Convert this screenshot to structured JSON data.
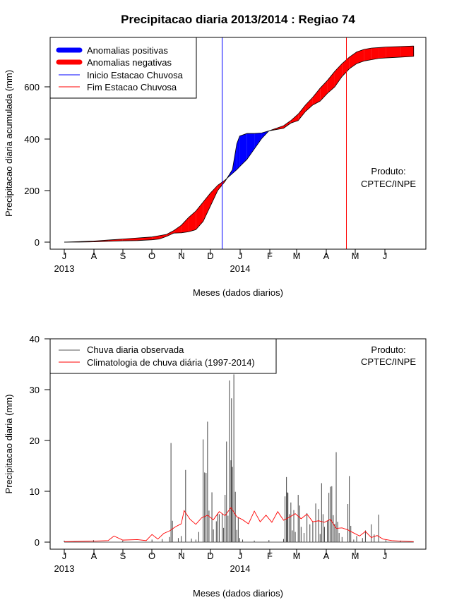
{
  "chart_data": [
    {
      "type": "area",
      "title": "Precipitacao diaria 2013/2014 : Regiao 74",
      "ylabel": "Precipitacao diaria acumulada (mm)",
      "xlabel": "Meses (dados diarios)",
      "ylim": [
        0,
        780
      ],
      "y_ticks": [
        "0",
        "200",
        "400",
        "600"
      ],
      "x_ticks": [
        "J",
        "A",
        "S",
        "O",
        "N",
        "D",
        "J",
        "F",
        "M",
        "A",
        "M",
        "J"
      ],
      "year_labels": [
        "2013",
        "2014"
      ],
      "legend": [
        {
          "label": "Anomalias positivas",
          "color": "#0000ff"
        },
        {
          "label": "Anomalias negativas",
          "color": "#ff0000"
        },
        {
          "label": "Inicio Estacao Chuvosa",
          "color": "#0000ff"
        },
        {
          "label": "Fim Estacao Chuvosa",
          "color": "#ff0000"
        }
      ],
      "product_label": "Produto:",
      "product_name": "CPTEC/INPE",
      "rainy_season_start_month": 5.4,
      "rainy_season_end_month": 9.65,
      "month_index": [
        0,
        0.5,
        1,
        1.5,
        2,
        2.5,
        3,
        3.25,
        3.5,
        3.75,
        4,
        4.25,
        4.5,
        4.75,
        5,
        5.25,
        5.5,
        5.75,
        5.9,
        6,
        6.25,
        6.5,
        6.75,
        7,
        7.25,
        7.5,
        7.75,
        8,
        8.25,
        8.5,
        8.75,
        9,
        9.25,
        9.5,
        9.75,
        10,
        10.25,
        10.5,
        10.75,
        11,
        11.5,
        11.95
      ],
      "observed_cumulative_mm": [
        0,
        0,
        1,
        3,
        5,
        6,
        9,
        12,
        22,
        35,
        36,
        40,
        48,
        80,
        140,
        200,
        235,
        280,
        380,
        410,
        420,
        420,
        422,
        430,
        435,
        440,
        460,
        470,
        505,
        530,
        545,
        575,
        600,
        640,
        670,
        690,
        700,
        705,
        710,
        712,
        715,
        718
      ],
      "climatology_cumulative_mm": [
        0,
        2,
        4,
        8,
        12,
        16,
        20,
        25,
        30,
        45,
        65,
        95,
        120,
        155,
        190,
        220,
        240,
        265,
        280,
        292,
        320,
        360,
        400,
        430,
        440,
        450,
        470,
        495,
        530,
        560,
        595,
        625,
        660,
        690,
        715,
        735,
        745,
        750,
        752,
        754,
        756,
        758
      ]
    },
    {
      "type": "line",
      "ylabel": "Precipitacao diaria (mm)",
      "xlabel": "Meses (dados diarios)",
      "ylim": [
        0,
        40
      ],
      "y_ticks": [
        "0",
        "10",
        "20",
        "30",
        "40"
      ],
      "x_ticks": [
        "J",
        "A",
        "S",
        "O",
        "N",
        "D",
        "J",
        "F",
        "M",
        "A",
        "M",
        "J"
      ],
      "year_labels": [
        "2013",
        "2014"
      ],
      "legend": [
        {
          "label": "Chuva diaria observada",
          "color": "#555555"
        },
        {
          "label": "Climatologia de chuva diária (1997-2014)",
          "color": "#ff0000"
        }
      ],
      "product_label": "Produto:",
      "product_name": "CPTEC/INPE",
      "observed_daily_rain": [
        {
          "month": 0.0,
          "mm": 0.3
        },
        {
          "month": 1.0,
          "mm": 0.4
        },
        {
          "month": 2.0,
          "mm": 0.3
        },
        {
          "month": 3.0,
          "mm": 0.5
        },
        {
          "month": 3.35,
          "mm": 0.6
        },
        {
          "month": 3.6,
          "mm": 1.0
        },
        {
          "month": 3.65,
          "mm": 19.5
        },
        {
          "month": 3.7,
          "mm": 4.2
        },
        {
          "month": 3.9,
          "mm": 0.8
        },
        {
          "month": 4.0,
          "mm": 1.2
        },
        {
          "month": 4.15,
          "mm": 14.2
        },
        {
          "month": 4.35,
          "mm": 0.7
        },
        {
          "month": 4.5,
          "mm": 0.5
        },
        {
          "month": 4.6,
          "mm": 2.0
        },
        {
          "month": 4.75,
          "mm": 20.2
        },
        {
          "month": 4.8,
          "mm": 13.7
        },
        {
          "month": 4.85,
          "mm": 13.6
        },
        {
          "month": 4.9,
          "mm": 23.7
        },
        {
          "month": 4.95,
          "mm": 6.2
        },
        {
          "month": 5.05,
          "mm": 9.8
        },
        {
          "month": 5.1,
          "mm": 2.5
        },
        {
          "month": 5.2,
          "mm": 4.1
        },
        {
          "month": 5.25,
          "mm": 5.6
        },
        {
          "month": 5.3,
          "mm": 5.5
        },
        {
          "month": 5.4,
          "mm": 5.6
        },
        {
          "month": 5.45,
          "mm": 2.8
        },
        {
          "month": 5.5,
          "mm": 9.3
        },
        {
          "month": 5.55,
          "mm": 19.8
        },
        {
          "month": 5.6,
          "mm": 5.2
        },
        {
          "month": 5.65,
          "mm": 31.8
        },
        {
          "month": 5.7,
          "mm": 16.1
        },
        {
          "month": 5.72,
          "mm": 28.3
        },
        {
          "month": 5.75,
          "mm": 14.8
        },
        {
          "month": 5.8,
          "mm": 33.0
        },
        {
          "month": 5.85,
          "mm": 9.9
        },
        {
          "month": 5.9,
          "mm": 2.4
        },
        {
          "month": 5.95,
          "mm": 4.8
        },
        {
          "month": 6.0,
          "mm": 0.8
        },
        {
          "month": 6.1,
          "mm": 0.5
        },
        {
          "month": 6.5,
          "mm": 0.3
        },
        {
          "month": 7.0,
          "mm": 0.4
        },
        {
          "month": 7.5,
          "mm": 0.6
        },
        {
          "month": 7.55,
          "mm": 9.0
        },
        {
          "month": 7.6,
          "mm": 12.8
        },
        {
          "month": 7.62,
          "mm": 9.8
        },
        {
          "month": 7.65,
          "mm": 9.7
        },
        {
          "month": 7.7,
          "mm": 5.5
        },
        {
          "month": 7.75,
          "mm": 7.8
        },
        {
          "month": 7.8,
          "mm": 2.3
        },
        {
          "month": 7.85,
          "mm": 6.3
        },
        {
          "month": 7.9,
          "mm": 2.0
        },
        {
          "month": 8.0,
          "mm": 9.3
        },
        {
          "month": 8.05,
          "mm": 7.2
        },
        {
          "month": 8.1,
          "mm": 3.0
        },
        {
          "month": 8.2,
          "mm": 1.8
        },
        {
          "month": 8.3,
          "mm": 5.7
        },
        {
          "month": 8.4,
          "mm": 3.5
        },
        {
          "month": 8.5,
          "mm": 4.1
        },
        {
          "month": 8.6,
          "mm": 7.6
        },
        {
          "month": 8.7,
          "mm": 6.5
        },
        {
          "month": 8.75,
          "mm": 1.6
        },
        {
          "month": 8.8,
          "mm": 11.6
        },
        {
          "month": 8.85,
          "mm": 5.5
        },
        {
          "month": 8.9,
          "mm": 3.0
        },
        {
          "month": 9.0,
          "mm": 4.2
        },
        {
          "month": 9.05,
          "mm": 9.7
        },
        {
          "month": 9.1,
          "mm": 10.9
        },
        {
          "month": 9.15,
          "mm": 11.0
        },
        {
          "month": 9.2,
          "mm": 5.3
        },
        {
          "month": 9.25,
          "mm": 3.6
        },
        {
          "month": 9.3,
          "mm": 17.7
        },
        {
          "month": 9.35,
          "mm": 4.0
        },
        {
          "month": 9.4,
          "mm": 1.8
        },
        {
          "month": 9.5,
          "mm": 1.0
        },
        {
          "month": 9.7,
          "mm": 7.5
        },
        {
          "month": 9.75,
          "mm": 13.0
        },
        {
          "month": 9.8,
          "mm": 3.2
        },
        {
          "month": 9.9,
          "mm": 0.5
        },
        {
          "month": 10.0,
          "mm": 1.2
        },
        {
          "month": 10.2,
          "mm": 0.8
        },
        {
          "month": 10.3,
          "mm": 2.3
        },
        {
          "month": 10.5,
          "mm": 3.5
        },
        {
          "month": 10.6,
          "mm": 1.5
        },
        {
          "month": 10.75,
          "mm": 5.4
        },
        {
          "month": 11.0,
          "mm": 0.4
        },
        {
          "month": 11.5,
          "mm": 0.3
        }
      ],
      "climatology_daily_rain": {
        "month": [
          0,
          1,
          1.5,
          1.7,
          2.0,
          2.5,
          2.8,
          3.0,
          3.2,
          3.4,
          3.6,
          3.8,
          4.0,
          4.1,
          4.3,
          4.5,
          4.7,
          4.9,
          5.1,
          5.3,
          5.5,
          5.7,
          5.9,
          6.1,
          6.3,
          6.5,
          6.7,
          6.9,
          7.1,
          7.3,
          7.5,
          7.7,
          7.9,
          8.1,
          8.3,
          8.5,
          8.7,
          8.9,
          9.1,
          9.3,
          9.5,
          9.7,
          9.9,
          10.1,
          10.3,
          10.5,
          10.7,
          10.9,
          11.2,
          11.5,
          11.95
        ],
        "mm": [
          0.1,
          0.2,
          0.3,
          1.2,
          0.4,
          0.5,
          0.3,
          1.5,
          0.6,
          1.7,
          2.2,
          3.0,
          3.6,
          6.2,
          4.5,
          3.5,
          4.8,
          5.3,
          4.4,
          6.0,
          5.2,
          6.8,
          5.0,
          4.4,
          3.6,
          6.1,
          4.0,
          5.3,
          3.9,
          6.0,
          4.3,
          4.9,
          5.6,
          4.6,
          5.5,
          4.0,
          4.2,
          3.9,
          4.5,
          2.7,
          2.8,
          2.4,
          1.8,
          1.2,
          2.1,
          0.9,
          1.3,
          0.6,
          0.3,
          0.2,
          0.1
        ]
      }
    }
  ]
}
